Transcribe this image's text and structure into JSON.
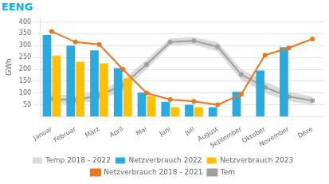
{
  "chart_data": {
    "type": "bar",
    "title": "EENG",
    "ylabel": "GWh",
    "categories": [
      "Januar",
      "Februar",
      "März",
      "April",
      "Mai",
      "Juni",
      "Juli",
      "August",
      "September",
      "Oktober",
      "November",
      "Deze"
    ],
    "series": [
      {
        "name": "Temp 2018 - 2022",
        "type": "band",
        "color": "#BEBEBE",
        "lower": [
          55,
          52,
          68,
          110,
          200,
          300,
          305,
          275,
          155,
          100,
          65,
          50
        ],
        "upper": [
          95,
          88,
          110,
          155,
          240,
          330,
          335,
          315,
          200,
          148,
          105,
          85
        ]
      },
      {
        "name": "Netzverbrauch 2022",
        "type": "bar",
        "color": "#29ABE2",
        "values": [
          345,
          300,
          280,
          205,
          102,
          63,
          50,
          40,
          105,
          195,
          293,
          null
        ]
      },
      {
        "name": "Netzverbrauch 2023",
        "type": "bar",
        "color": "#FFC000",
        "values": [
          258,
          232,
          225,
          163,
          87,
          40,
          40,
          null,
          null,
          null,
          null,
          null
        ]
      },
      {
        "name": "Netzverbrauch 2018 - 2021",
        "type": "line",
        "color": "#E87722",
        "values": [
          360,
          315,
          305,
          200,
          100,
          72,
          65,
          50,
          95,
          260,
          290,
          328
        ]
      },
      {
        "name": "Tem",
        "type": "line",
        "color": "#A0A0A0",
        "values": [
          75,
          70,
          90,
          133,
          220,
          315,
          320,
          295,
          178,
          124,
          85,
          68
        ]
      }
    ],
    "ylim": [
      0,
      420
    ],
    "yticks": [
      50,
      100,
      150,
      200,
      250,
      300,
      350,
      400
    ],
    "grid": true,
    "legend": "bottom"
  }
}
